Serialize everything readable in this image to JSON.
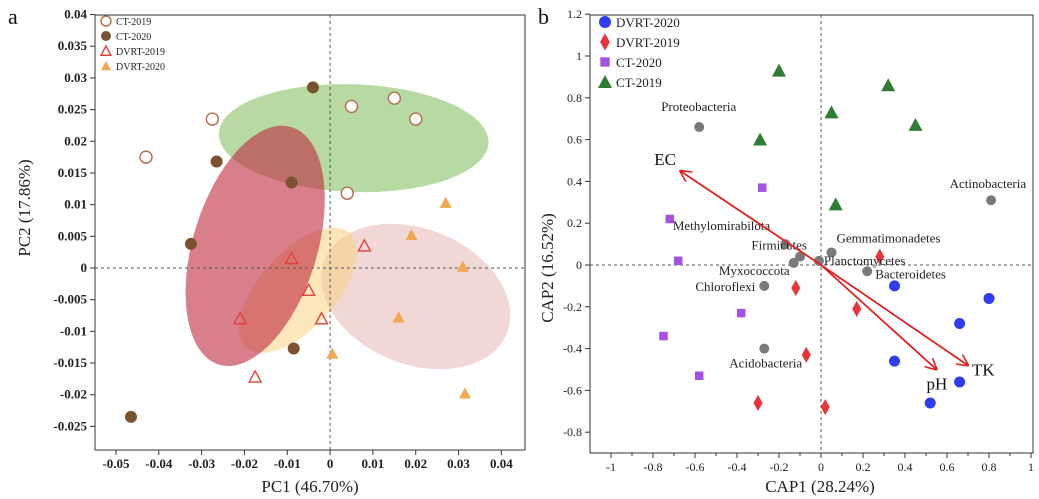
{
  "panels": {
    "a": {
      "label": "a",
      "xlabel": "PC1 (46.70%)",
      "ylabel": "PC2 (17.86%)",
      "xticks": [
        "-0.05",
        "-0.04",
        "-0.03",
        "-0.02",
        "-0.01",
        "0",
        "0.01",
        "0.02",
        "0.03",
        "0.04"
      ],
      "yticks": [
        "0.04",
        "0.035",
        "0.03",
        "0.025",
        "0.02",
        "0.015",
        "0.01",
        "0.005",
        "0",
        "-0.005",
        "-0.01",
        "-0.015",
        "-0.02",
        "-0.025"
      ]
    },
    "b": {
      "label": "b",
      "xlabel": "CAP1 (28.24%)",
      "ylabel": "CAP2 (16.52%)",
      "xticks": [
        "-1",
        "-0.9",
        "-0.8",
        "-0.7",
        "-0.6",
        "-0.5",
        "-0.4",
        "-0.3",
        "-0.2",
        "-0.1",
        "0",
        "0.1",
        "0.2",
        "0.3",
        "0.4",
        "0.5",
        "0.6",
        "0.7",
        "0.8",
        "0.9",
        "1"
      ],
      "yticks": [
        "1.2",
        "1",
        "0.8",
        "0.6",
        "0.4",
        "0.2",
        "0",
        "-0.2",
        "-0.4",
        "-0.6",
        "-0.8"
      ]
    }
  },
  "chart_data": [
    {
      "type": "scatter",
      "xlabel": "PC1 (46.70%)",
      "ylabel": "PC2 (17.86%)",
      "xlim": [
        -0.05,
        0.04
      ],
      "ylim": [
        -0.025,
        0.04
      ],
      "grid": false,
      "legend_position": "top-left",
      "reference_lines": {
        "x": 0,
        "y": 0
      },
      "series": [
        {
          "name": "CT-2019",
          "marker": "open-circle",
          "color": "#b56a4b",
          "points": [
            [
              -0.043,
              0.0175
            ],
            [
              -0.0275,
              0.0235
            ],
            [
              0.005,
              0.0255
            ],
            [
              0.015,
              0.0268
            ],
            [
              0.02,
              0.0235
            ],
            [
              0.004,
              0.0118
            ]
          ]
        },
        {
          "name": "CT-2020",
          "marker": "filled-circle",
          "color": "#7a5230",
          "points": [
            [
              -0.004,
              0.0285
            ],
            [
              -0.0265,
              0.0168
            ],
            [
              -0.009,
              0.0135
            ],
            [
              -0.0325,
              0.0038
            ],
            [
              -0.0085,
              -0.0127
            ],
            [
              -0.0465,
              -0.0235
            ]
          ]
        },
        {
          "name": "DVRT-2019",
          "marker": "open-triangle",
          "color": "#e0413a",
          "points": [
            [
              -0.009,
              0.0015
            ],
            [
              0.008,
              0.0035
            ],
            [
              -0.005,
              -0.0035
            ],
            [
              -0.021,
              -0.008
            ],
            [
              -0.002,
              -0.008
            ],
            [
              -0.0175,
              -0.0172
            ]
          ]
        },
        {
          "name": "DVRT-2020",
          "marker": "filled-triangle",
          "color": "#f2a851",
          "points": [
            [
              0.027,
              0.0103
            ],
            [
              0.019,
              0.0052
            ],
            [
              0.031,
              0.0002
            ],
            [
              0.016,
              -0.0078
            ],
            [
              0.0005,
              -0.0135
            ],
            [
              0.0315,
              -0.0198
            ]
          ]
        }
      ],
      "ellipses": [
        {
          "group": "CT-2019",
          "color": "#8bc469",
          "cx": 0.0055,
          "cy": 0.0205,
          "rx": 0.0315,
          "ry": 0.0085,
          "angle": -2
        },
        {
          "group": "CT-2020",
          "color": "#c0283d",
          "cx": -0.0175,
          "cy": 0.0035,
          "rx": 0.029,
          "ry": 0.0098,
          "angle": 73
        },
        {
          "group": "DVRT-2019",
          "color": "#f7d47f",
          "cx": -0.0075,
          "cy": -0.0035,
          "rx": 0.018,
          "ry": 0.006,
          "angle": 48
        },
        {
          "group": "DVRT-2020",
          "color": "#e3b2b0",
          "cx": 0.02,
          "cy": -0.0045,
          "rx": 0.0158,
          "ry": 0.0155,
          "angle": 68
        }
      ]
    },
    {
      "type": "scatter",
      "xlabel": "CAP1 (28.24%)",
      "ylabel": "CAP2 (16.52%)",
      "xlim": [
        -1.1,
        1.05
      ],
      "ylim": [
        -0.85,
        1.2
      ],
      "grid": false,
      "legend_position": "top-left",
      "reference_lines": {
        "x": 0,
        "y": 0
      },
      "series": [
        {
          "name": "DVRT-2020",
          "marker": "circle",
          "color": "#2f3df2",
          "points": [
            [
              0.35,
              -0.1
            ],
            [
              0.8,
              -0.16
            ],
            [
              0.66,
              -0.28
            ],
            [
              0.35,
              -0.46
            ],
            [
              0.66,
              -0.56
            ],
            [
              0.52,
              -0.66
            ]
          ]
        },
        {
          "name": "DVRT-2019",
          "marker": "diamond",
          "color": "#e8343a",
          "points": [
            [
              0.28,
              0.04
            ],
            [
              -0.12,
              -0.11
            ],
            [
              0.17,
              -0.21
            ],
            [
              -0.07,
              -0.43
            ],
            [
              -0.3,
              -0.66
            ],
            [
              0.02,
              -0.68
            ]
          ]
        },
        {
          "name": "CT-2020",
          "marker": "square",
          "color": "#a352e3",
          "points": [
            [
              -0.28,
              0.37
            ],
            [
              -0.72,
              0.22
            ],
            [
              -0.68,
              0.02
            ],
            [
              -0.38,
              -0.23
            ],
            [
              -0.75,
              -0.34
            ],
            [
              -0.58,
              -0.53
            ]
          ]
        },
        {
          "name": "CT-2019",
          "marker": "triangle",
          "color": "#2e7d32",
          "points": [
            [
              -0.2,
              0.93
            ],
            [
              0.32,
              0.86
            ],
            [
              0.05,
              0.73
            ],
            [
              0.45,
              0.67
            ],
            [
              -0.29,
              0.6
            ],
            [
              0.07,
              0.29
            ]
          ]
        }
      ],
      "species": [
        {
          "name": "Proteobacteria",
          "x": -0.58,
          "y": 0.66
        },
        {
          "name": "Actinobacteria",
          "x": 0.81,
          "y": 0.31
        },
        {
          "name": "Methylomirabilota",
          "x": -0.17,
          "y": 0.1
        },
        {
          "name": "Firmicutes",
          "x": -0.1,
          "y": 0.04
        },
        {
          "name": "Gemmatimonadetes",
          "x": 0.05,
          "y": 0.06
        },
        {
          "name": "Planctomycetes",
          "x": -0.01,
          "y": 0.02
        },
        {
          "name": "Bacteroidetes",
          "x": 0.22,
          "y": -0.03
        },
        {
          "name": "Myxococcota",
          "x": -0.13,
          "y": 0.01
        },
        {
          "name": "Chloroflexi",
          "x": -0.27,
          "y": -0.1
        },
        {
          "name": "Acidobacteria",
          "x": -0.27,
          "y": -0.4
        }
      ],
      "vectors": [
        {
          "name": "EC",
          "x": -0.67,
          "y": 0.45
        },
        {
          "name": "pH",
          "x": 0.55,
          "y": -0.5
        },
        {
          "name": "TK",
          "x": 0.7,
          "y": -0.48
        }
      ]
    }
  ]
}
